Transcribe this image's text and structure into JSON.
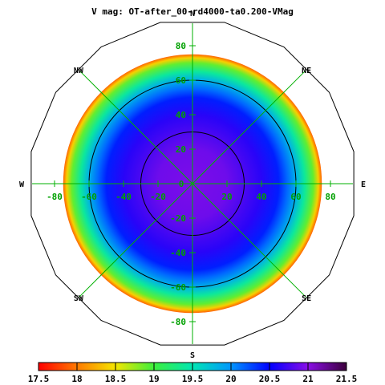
{
  "chart_data": {
    "type": "heatmap",
    "title": "V mag: OT-after_00-rd4000-ta0.200-VMag",
    "projection": "polar sky map (zenith at center, radius = zenith angle)",
    "directions": [
      "N",
      "NE",
      "E",
      "SE",
      "S",
      "SW",
      "W",
      "NW"
    ],
    "axis_ticks": [
      "-80",
      "-60",
      "-40",
      "-20",
      "0",
      "20",
      "40",
      "60",
      "80"
    ],
    "grid_rings_deg": [
      30,
      60,
      90
    ],
    "valid_zenith_max_deg": 75,
    "colorbar": {
      "min": 17.5,
      "max": 21.5,
      "labels": [
        "17.5",
        "18",
        "18.5",
        "19",
        "19.5",
        "20",
        "20.5",
        "21",
        "21.5"
      ],
      "stops": [
        {
          "v": 17.5,
          "color": "#ff0000"
        },
        {
          "v": 18.0,
          "color": "#ff7a00"
        },
        {
          "v": 18.5,
          "color": "#f5e600"
        },
        {
          "v": 19.0,
          "color": "#3cf03c"
        },
        {
          "v": 19.5,
          "color": "#00e6b4"
        },
        {
          "v": 20.0,
          "color": "#0096ff"
        },
        {
          "v": 20.5,
          "color": "#0000ff"
        },
        {
          "v": 21.0,
          "color": "#8a0fe6"
        },
        {
          "v": 21.5,
          "color": "#3c003c"
        }
      ]
    },
    "profile_zenith_vs_mag": [
      {
        "zenith_deg": 0,
        "mag": 20.95
      },
      {
        "zenith_deg": 20,
        "mag": 20.9
      },
      {
        "zenith_deg": 40,
        "mag": 20.65
      },
      {
        "zenith_deg": 50,
        "mag": 20.4
      },
      {
        "zenith_deg": 55,
        "mag": 20.15
      },
      {
        "zenith_deg": 60,
        "mag": 19.85
      },
      {
        "zenith_deg": 65,
        "mag": 19.4
      },
      {
        "zenith_deg": 70,
        "mag": 18.9
      },
      {
        "zenith_deg": 73,
        "mag": 18.4
      },
      {
        "zenith_deg": 75,
        "mag": 17.9
      }
    ]
  }
}
